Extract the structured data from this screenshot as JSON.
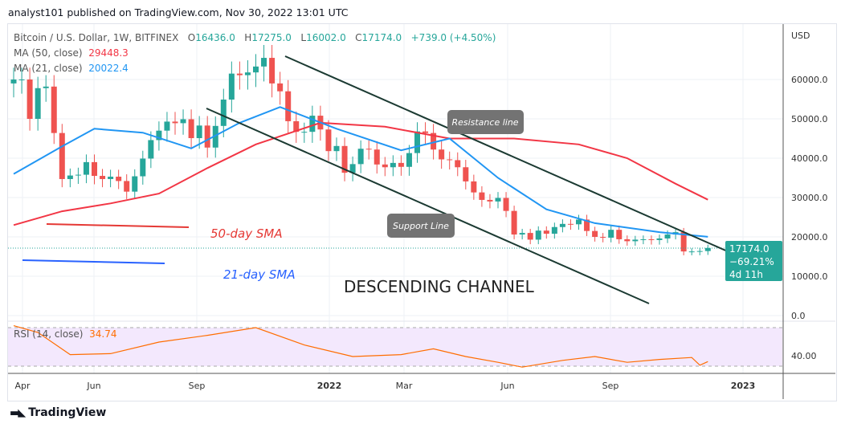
{
  "header": "analyst101 published on TradingView.com, Nov 30, 2022 13:01 UTC",
  "symbol": {
    "name": "Bitcoin / U.S. Dollar, 1W, BITFINEX",
    "o_label": "O",
    "open": "16436.0",
    "h_label": "H",
    "high": "17275.0",
    "l_label": "L",
    "low": "16002.0",
    "c_label": "C",
    "close": "17174.0",
    "change": "+739.0 (+4.50%)"
  },
  "ma50": {
    "label": "MA (50, close)",
    "value": "29448.3",
    "color": "#f23645"
  },
  "ma21": {
    "label": "MA (21, close)",
    "value": "20022.4",
    "color": "#2196f3"
  },
  "rsi": {
    "label": "RSI (14, close)",
    "value": "34.74",
    "color": "#ff6d00"
  },
  "price_tag": {
    "price": "17174.0",
    "change": "−69.21%",
    "countdown": "4d 11h"
  },
  "annotations": {
    "resistance": "Resistance line",
    "support": "Support Line",
    "sma50": "50-day SMA",
    "sma21": "21-day SMA",
    "channel": "DESCENDING CHANNEL"
  },
  "footer": {
    "brand": "TradingView"
  },
  "colors": {
    "up": "#26a69a",
    "down": "#ef5350"
  },
  "chart_data": {
    "type": "candlestick",
    "currency_label": "USD",
    "y_ticks": [
      "60000.0",
      "50000.0",
      "40000.0",
      "30000.0",
      "20000.0",
      "10000.0",
      "0.0"
    ],
    "rsi_ticks": [
      "40.00"
    ],
    "x_ticks": [
      "Apr",
      "Jun",
      "Sep",
      "2022",
      "Mar",
      "Jun",
      "Sep",
      "2023"
    ],
    "start_open": 59000,
    "weekly_closes": [
      60000,
      60000,
      50000,
      57800,
      58200,
      46400,
      34700,
      35600,
      35800,
      39000,
      35500,
      34700,
      35300,
      34200,
      31500,
      35400,
      39900,
      44600,
      47000,
      49300,
      48900,
      49900,
      45100,
      48300,
      42700,
      48200,
      54900,
      61500,
      61100,
      61800,
      63300,
      65500,
      59000,
      57000,
      49400,
      46700,
      46700,
      50800,
      47300,
      41800,
      43100,
      36300,
      38500,
      42400,
      42200,
      38400,
      37700,
      38800,
      37800,
      41300,
      46800,
      46400,
      42200,
      39700,
      39500,
      37700,
      34100,
      31300,
      29400,
      29000,
      29900,
      26600,
      20600,
      21000,
      19300,
      21600,
      20800,
      22500,
      23300,
      23200,
      24400,
      21500,
      20000,
      19800,
      21800,
      19400,
      18900,
      19300,
      19400,
      19200,
      19600,
      20600,
      21200,
      16300,
      16300,
      16400,
      17174
    ],
    "ma21_points": [
      [
        0,
        36000
      ],
      [
        6,
        43000
      ],
      [
        10,
        47500
      ],
      [
        16,
        46500
      ],
      [
        22,
        42500
      ],
      [
        28,
        49000
      ],
      [
        33,
        53000
      ],
      [
        40,
        47500
      ],
      [
        48,
        42000
      ],
      [
        54,
        45000
      ],
      [
        60,
        35000
      ],
      [
        66,
        27000
      ],
      [
        72,
        23500
      ],
      [
        80,
        21200
      ],
      [
        86,
        20022
      ]
    ],
    "ma50_points": [
      [
        0,
        23000
      ],
      [
        6,
        26500
      ],
      [
        12,
        28500
      ],
      [
        18,
        31000
      ],
      [
        24,
        37500
      ],
      [
        30,
        43500
      ],
      [
        38,
        49000
      ],
      [
        46,
        48000
      ],
      [
        54,
        45000
      ],
      [
        62,
        45000
      ],
      [
        70,
        43500
      ],
      [
        76,
        40000
      ],
      [
        82,
        33500
      ],
      [
        86,
        29448
      ]
    ],
    "rsi_points": [
      [
        0,
        72
      ],
      [
        3,
        65
      ],
      [
        7,
        42
      ],
      [
        12,
        43
      ],
      [
        18,
        55
      ],
      [
        24,
        62
      ],
      [
        30,
        70
      ],
      [
        36,
        52
      ],
      [
        42,
        40
      ],
      [
        48,
        42
      ],
      [
        52,
        48
      ],
      [
        56,
        40
      ],
      [
        60,
        34
      ],
      [
        63,
        29
      ],
      [
        68,
        36
      ],
      [
        72,
        40
      ],
      [
        76,
        34
      ],
      [
        80,
        37
      ],
      [
        84,
        39
      ],
      [
        85,
        31
      ],
      [
        86,
        34.74
      ]
    ]
  }
}
